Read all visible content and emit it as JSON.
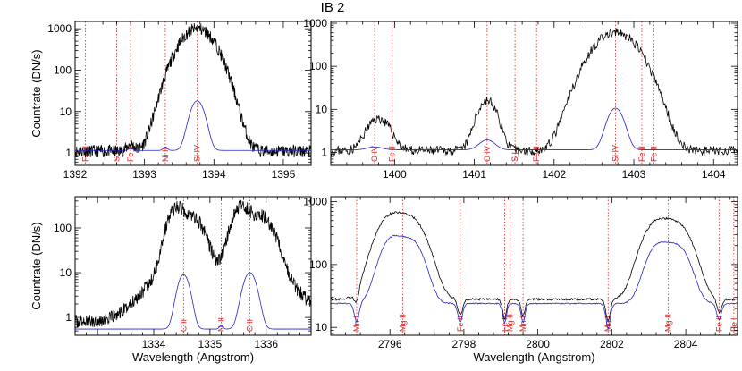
{
  "figure_title": "IB 2",
  "colors": {
    "observed": "#000000",
    "model": "#2222cc",
    "line_marker": "#dd2222",
    "axis": "#000000"
  },
  "chart_data": [
    {
      "type": "line",
      "panel": "top-left",
      "ylabel": "Countrate (DN/s)",
      "xlabel": "",
      "xlim": [
        1392.0,
        1395.4
      ],
      "ylim": [
        0.5,
        1500
      ],
      "yscale": "log",
      "xticks": [
        1392,
        1393,
        1394,
        1395
      ],
      "yticks": [
        1,
        10,
        100,
        1000
      ],
      "markers": [
        {
          "x": 1392.15,
          "label": "Fe II"
        },
        {
          "x": 1392.6,
          "label": "S I"
        },
        {
          "x": 1392.8,
          "label": "Fe II"
        },
        {
          "x": 1393.3,
          "label": "Ni II"
        },
        {
          "x": 1393.76,
          "label": "Si IV"
        }
      ],
      "series": [
        {
          "role": "observed",
          "base": 1.1,
          "noise": 0.35,
          "seed": 11,
          "peaks": [
            [
              1393.76,
              1000,
              0.2
            ],
            [
              1393.3,
              0.8,
              0.06
            ],
            [
              1392.8,
              0.5,
              0.05
            ]
          ]
        },
        {
          "role": "model",
          "base": 1.15,
          "noise": 0,
          "seed": 0,
          "peaks": [
            [
              1393.76,
              17,
              0.085
            ],
            [
              1393.3,
              0.25,
              0.03
            ],
            [
              1392.8,
              0.15,
              0.03
            ]
          ]
        }
      ]
    },
    {
      "type": "line",
      "panel": "top-right",
      "ylabel": "",
      "xlabel": "",
      "xlim": [
        1399.2,
        1404.3
      ],
      "ylim": [
        0.5,
        1100
      ],
      "yscale": "log",
      "xticks": [
        1400,
        1401,
        1402,
        1403,
        1404
      ],
      "yticks": [
        1,
        10,
        100,
        1000
      ],
      "markers": [
        {
          "x": 1399.75,
          "label": "O IV"
        },
        {
          "x": 1399.97,
          "label": "Fe II"
        },
        {
          "x": 1401.16,
          "label": "O IV"
        },
        {
          "x": 1401.51,
          "label": "S I"
        },
        {
          "x": 1401.78,
          "label": "Fe II"
        },
        {
          "x": 1402.77,
          "label": "Si IV"
        },
        {
          "x": 1403.1,
          "label": "Fe II"
        },
        {
          "x": 1403.25,
          "label": "Fe II"
        }
      ],
      "series": [
        {
          "role": "observed",
          "base": 1.1,
          "noise": 0.25,
          "seed": 23,
          "peaks": [
            [
              1402.77,
              600,
              0.22
            ],
            [
              1401.16,
              15,
              0.1
            ],
            [
              1399.8,
              5,
              0.12
            ]
          ]
        },
        {
          "role": "model",
          "base": 1.15,
          "noise": 0,
          "seed": 0,
          "peaks": [
            [
              1402.77,
              9.5,
              0.085
            ],
            [
              1401.16,
              0.8,
              0.09
            ],
            [
              1399.75,
              0.2,
              0.09
            ]
          ]
        }
      ]
    },
    {
      "type": "line",
      "panel": "bottom-left",
      "ylabel": "Countrate (DN/s)",
      "xlabel": "Wavelength (Angstrom)",
      "xlim": [
        1332.6,
        1336.8
      ],
      "ylim": [
        0.4,
        500
      ],
      "yscale": "log",
      "xticks": [
        1334,
        1335,
        1336
      ],
      "yticks": [
        1,
        10,
        100
      ],
      "markers": [
        {
          "x": 1334.53,
          "label": "C II"
        },
        {
          "x": 1335.2,
          "label": "Ni II"
        },
        {
          "x": 1335.71,
          "label": "C II"
        }
      ],
      "series": [
        {
          "role": "observed",
          "base": 0.8,
          "noise": 0.35,
          "seed": 37,
          "peaks": [
            [
              1334.4,
              250,
              0.13
            ],
            [
              1334.7,
              150,
              0.16
            ],
            [
              1335.55,
              270,
              0.13
            ],
            [
              1335.9,
              170,
              0.18
            ],
            [
              1334.55,
              12,
              0.45
            ],
            [
              1335.7,
              14,
              0.5
            ]
          ]
        },
        {
          "role": "model",
          "base": 0.55,
          "noise": 0,
          "seed": 0,
          "peaks": [
            [
              1334.53,
              8.5,
              0.09
            ],
            [
              1335.71,
              9.5,
              0.1
            ],
            [
              1335.2,
              0.12,
              0.03
            ]
          ]
        }
      ]
    },
    {
      "type": "line",
      "panel": "bottom-right",
      "ylabel": "",
      "xlabel": "Wavelength (Angstrom)",
      "xlim": [
        2794.4,
        2805.4
      ],
      "ylim": [
        7.5,
        1200
      ],
      "yscale": "log",
      "xticks": [
        2796,
        2798,
        2800,
        2802,
        2804
      ],
      "yticks": [
        10,
        100,
        1000
      ],
      "markers": [
        {
          "x": 2795.1,
          "label": "Mn I"
        },
        {
          "x": 2796.35,
          "label": "Mg II"
        },
        {
          "x": 2797.9,
          "label": "Fe II"
        },
        {
          "x": 2799.1,
          "label": "Fe I"
        },
        {
          "x": 2799.25,
          "label": "Mg II"
        },
        {
          "x": 2799.6,
          "label": "Mn I"
        },
        {
          "x": 2801.9,
          "label": "Mn I"
        },
        {
          "x": 2803.53,
          "label": "Mg II"
        },
        {
          "x": 2804.9,
          "label": "Fe II"
        },
        {
          "x": 2805.3,
          "label": "Fe I"
        }
      ],
      "series": [
        {
          "role": "observed",
          "base": 28,
          "noise": 0.04,
          "seed": 53,
          "peaks": [
            [
              2796.0,
              520,
              0.33
            ],
            [
              2796.6,
              450,
              0.33
            ],
            [
              2803.2,
              420,
              0.32
            ],
            [
              2803.8,
              370,
              0.32
            ]
          ],
          "dips": [
            [
              2795.1,
              0.35,
              0.07
            ],
            [
              2797.9,
              0.45,
              0.07
            ],
            [
              2799.1,
              0.5,
              0.06
            ],
            [
              2799.6,
              0.45,
              0.06
            ],
            [
              2801.9,
              0.55,
              0.07
            ],
            [
              2804.9,
              0.4,
              0.07
            ]
          ]
        },
        {
          "role": "model",
          "base": 24,
          "noise": 0.02,
          "seed": 71,
          "peaks": [
            [
              2796.05,
              230,
              0.27
            ],
            [
              2796.6,
              200,
              0.27
            ],
            [
              2803.25,
              175,
              0.27
            ],
            [
              2803.8,
              160,
              0.27
            ]
          ],
          "dips": [
            [
              2795.1,
              0.5,
              0.07
            ],
            [
              2797.9,
              0.5,
              0.07
            ],
            [
              2799.1,
              0.5,
              0.06
            ],
            [
              2799.6,
              0.5,
              0.06
            ],
            [
              2801.9,
              0.6,
              0.07
            ],
            [
              2804.9,
              0.45,
              0.07
            ]
          ]
        }
      ]
    }
  ]
}
